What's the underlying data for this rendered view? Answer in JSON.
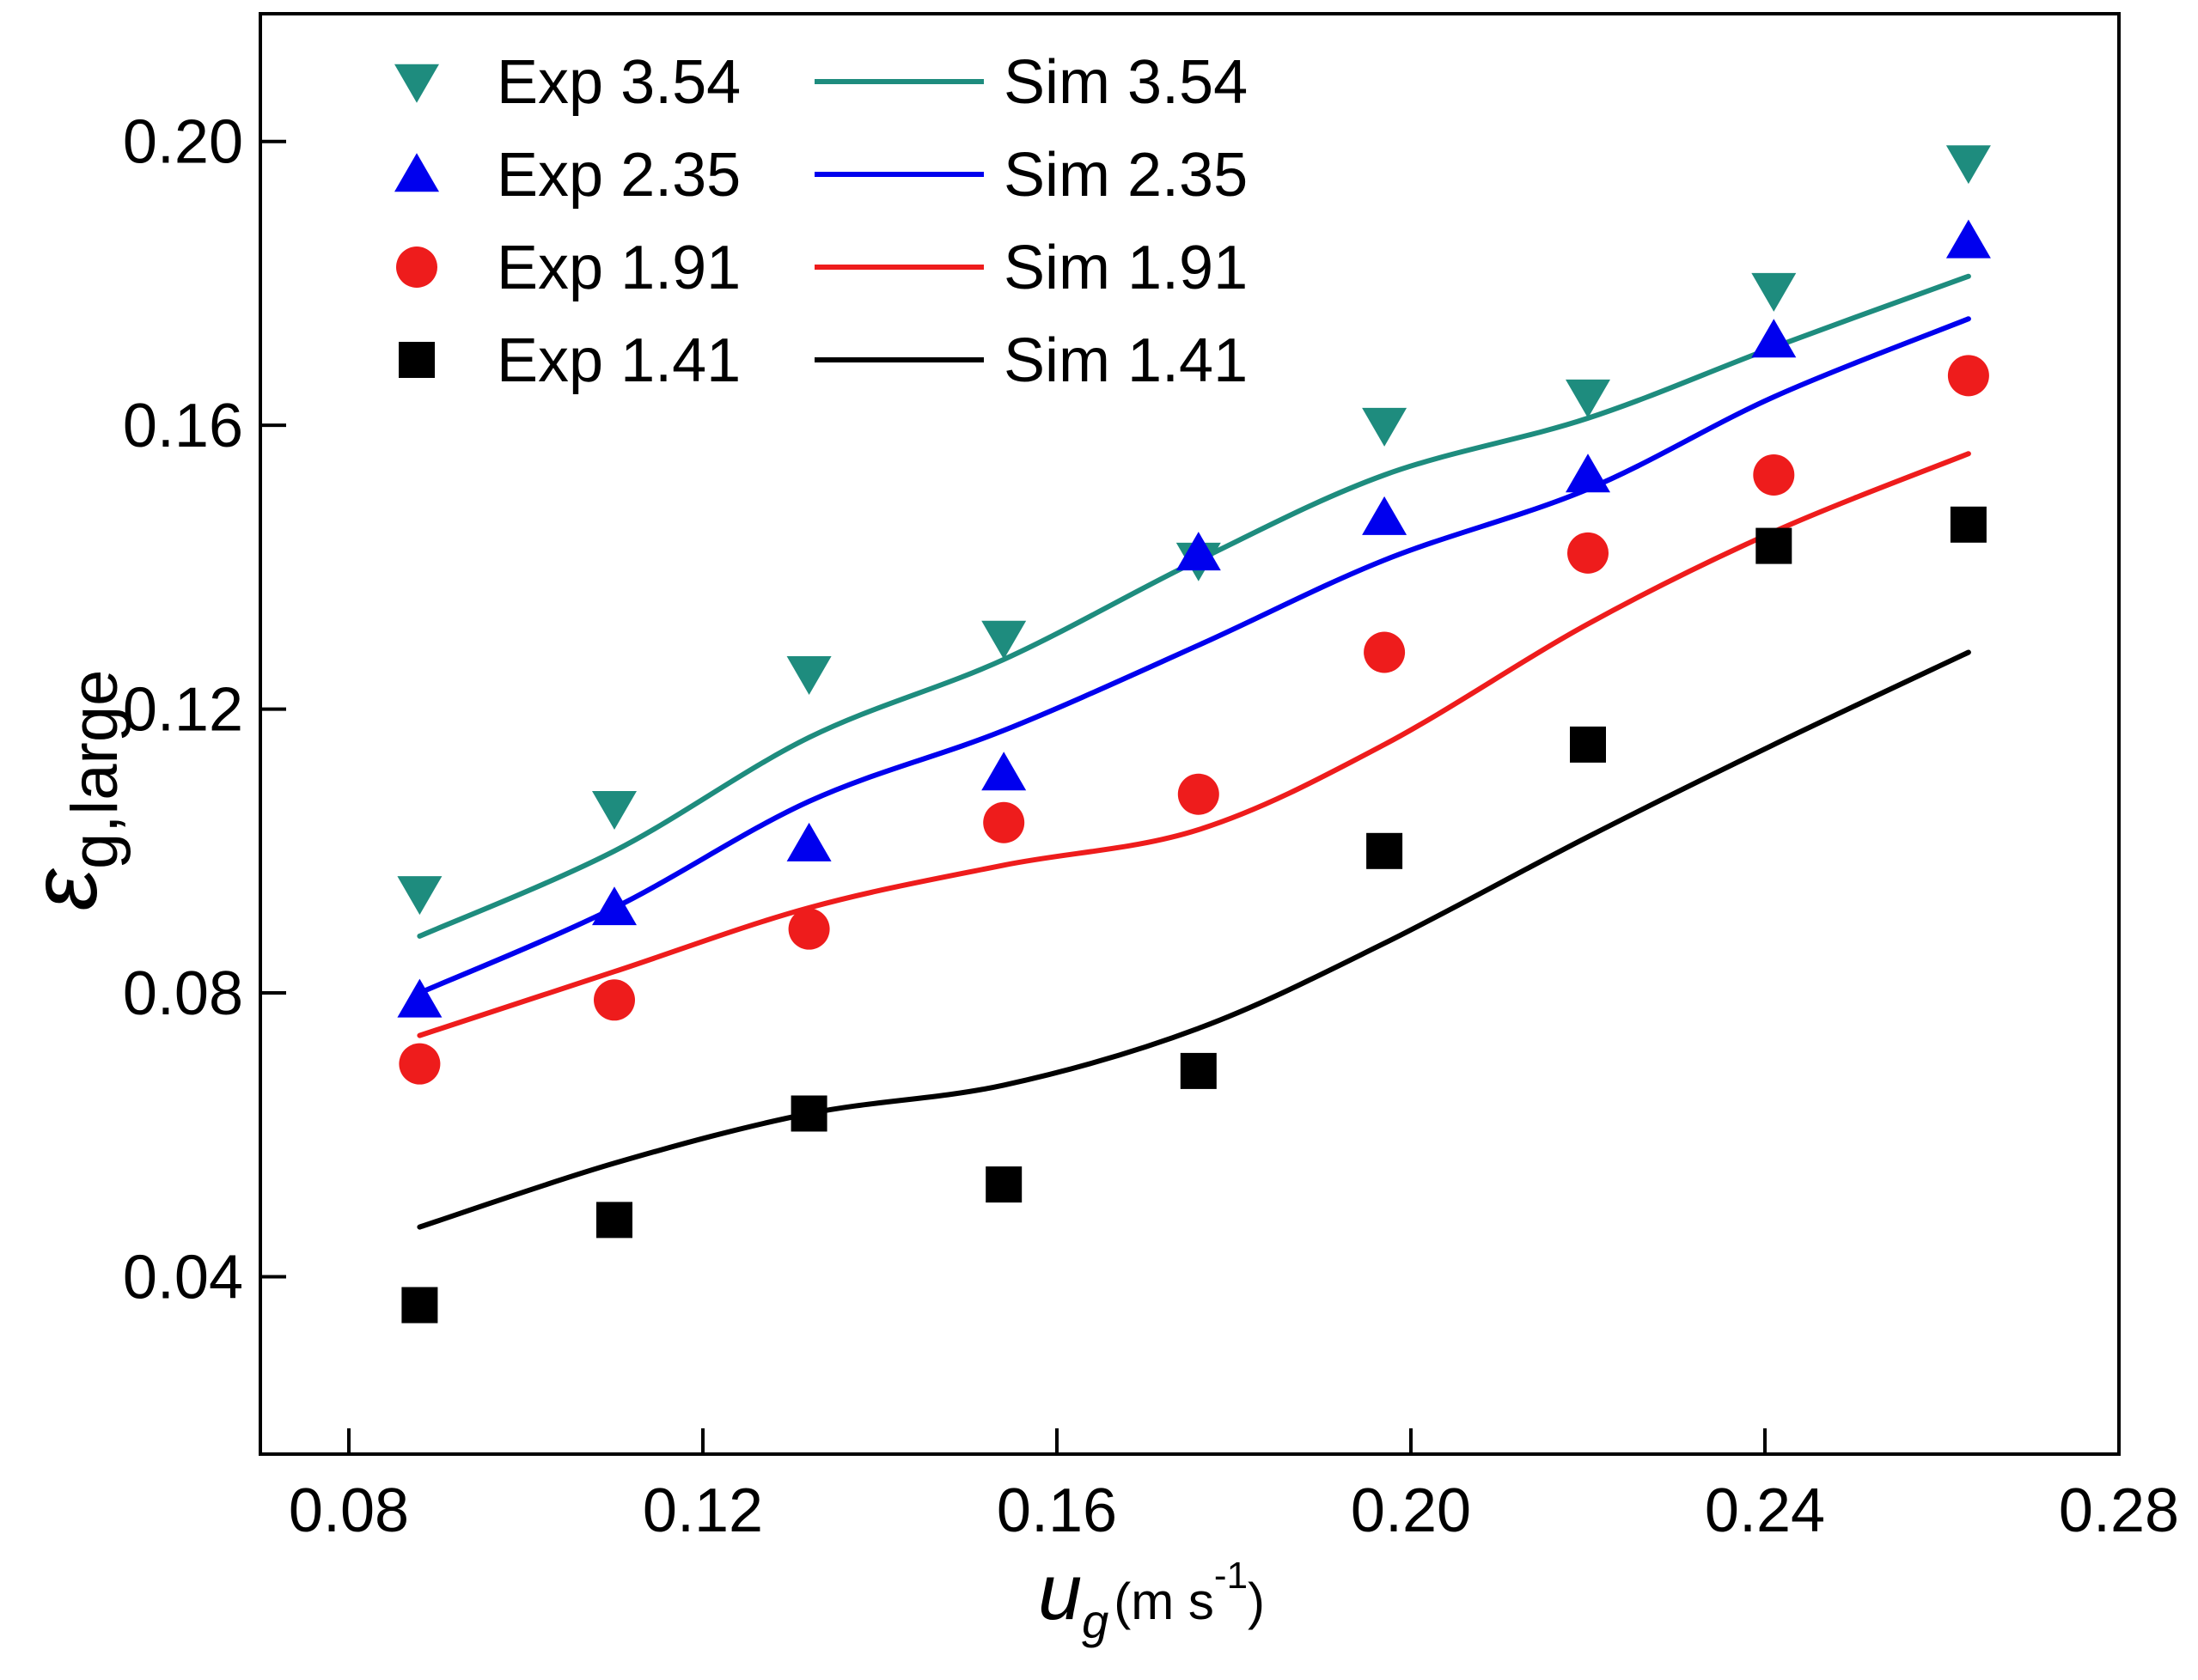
{
  "chart_data": {
    "type": "scatter",
    "xlabel": {
      "symbol": "u",
      "subscript": "g",
      "unit_prefix": "(m s",
      "unit_exp": "-1",
      "unit_suffix": ")"
    },
    "ylabel": {
      "symbol": "ε",
      "subscript": "g,large"
    },
    "xlim": [
      0.07,
      0.28
    ],
    "ylim": [
      0.015,
      0.218
    ],
    "xticks": [
      0.08,
      0.12,
      0.16,
      0.2,
      0.24,
      0.28
    ],
    "xtick_labels": [
      "0.08",
      "0.12",
      "0.16",
      "0.20",
      "0.24",
      "0.28"
    ],
    "yticks": [
      0.04,
      0.08,
      0.12,
      0.16,
      0.2
    ],
    "ytick_labels": [
      "0.04",
      "0.08",
      "0.12",
      "0.16",
      "0.20"
    ],
    "grid": false,
    "legend_position": "top-left",
    "series": [
      {
        "name": "Exp 3.54",
        "kind": "markers",
        "marker": "triangle-down",
        "color": "#1E8C7E",
        "x": [
          0.088,
          0.11,
          0.132,
          0.154,
          0.176,
          0.197,
          0.22,
          0.241,
          0.263
        ],
        "y": [
          0.094,
          0.106,
          0.125,
          0.13,
          0.141,
          0.16,
          0.164,
          0.179,
          0.197
        ]
      },
      {
        "name": "Exp 2.35",
        "kind": "markers",
        "marker": "triangle-up",
        "color": "#0000EE",
        "x": [
          0.088,
          0.11,
          0.132,
          0.154,
          0.176,
          0.197,
          0.22,
          0.241,
          0.263
        ],
        "y": [
          0.079,
          0.092,
          0.101,
          0.111,
          0.142,
          0.147,
          0.153,
          0.172,
          0.186
        ]
      },
      {
        "name": "Exp 1.91",
        "kind": "markers",
        "marker": "circle",
        "color": "#EE1C1C",
        "x": [
          0.088,
          0.11,
          0.132,
          0.154,
          0.176,
          0.197,
          0.22,
          0.241,
          0.263
        ],
        "y": [
          0.07,
          0.079,
          0.089,
          0.104,
          0.108,
          0.128,
          0.142,
          0.153,
          0.167
        ]
      },
      {
        "name": "Exp 1.41",
        "kind": "markers",
        "marker": "square",
        "color": "#000000",
        "x": [
          0.088,
          0.11,
          0.132,
          0.154,
          0.176,
          0.197,
          0.22,
          0.241,
          0.263
        ],
        "y": [
          0.036,
          0.048,
          0.063,
          0.053,
          0.069,
          0.1,
          0.115,
          0.143,
          0.146
        ]
      },
      {
        "name": "Sim 3.54",
        "kind": "line",
        "color": "#1E8C7E",
        "x": [
          0.088,
          0.11,
          0.132,
          0.154,
          0.176,
          0.197,
          0.22,
          0.241,
          0.263
        ],
        "y": [
          0.088,
          0.1,
          0.116,
          0.127,
          0.141,
          0.153,
          0.161,
          0.171,
          0.181
        ]
      },
      {
        "name": "Sim 2.35",
        "kind": "line",
        "color": "#0000EE",
        "x": [
          0.088,
          0.11,
          0.132,
          0.154,
          0.176,
          0.197,
          0.22,
          0.241,
          0.263
        ],
        "y": [
          0.08,
          0.092,
          0.107,
          0.117,
          0.129,
          0.141,
          0.151,
          0.164,
          0.175
        ]
      },
      {
        "name": "Sim 1.91",
        "kind": "line",
        "color": "#EE1C1C",
        "x": [
          0.088,
          0.11,
          0.132,
          0.154,
          0.176,
          0.197,
          0.22,
          0.241,
          0.263
        ],
        "y": [
          0.074,
          0.083,
          0.092,
          0.098,
          0.103,
          0.115,
          0.132,
          0.145,
          0.156
        ]
      },
      {
        "name": "Sim 1.41",
        "kind": "line",
        "color": "#000000",
        "x": [
          0.088,
          0.11,
          0.132,
          0.154,
          0.176,
          0.197,
          0.22,
          0.241,
          0.263
        ],
        "y": [
          0.047,
          0.056,
          0.063,
          0.067,
          0.075,
          0.087,
          0.102,
          0.115,
          0.128
        ]
      }
    ],
    "legend_rows": [
      {
        "exp": "Exp 3.54",
        "sim": "Sim 3.54",
        "marker": "triangle-down",
        "color": "#1E8C7E"
      },
      {
        "exp": "Exp 2.35",
        "sim": "Sim 2.35",
        "marker": "triangle-up",
        "color": "#0000EE"
      },
      {
        "exp": "Exp 1.91",
        "sim": "Sim 1.91",
        "marker": "circle",
        "color": "#EE1C1C"
      },
      {
        "exp": "Exp 1.41",
        "sim": "Sim 1.41",
        "marker": "square",
        "color": "#000000"
      }
    ]
  }
}
